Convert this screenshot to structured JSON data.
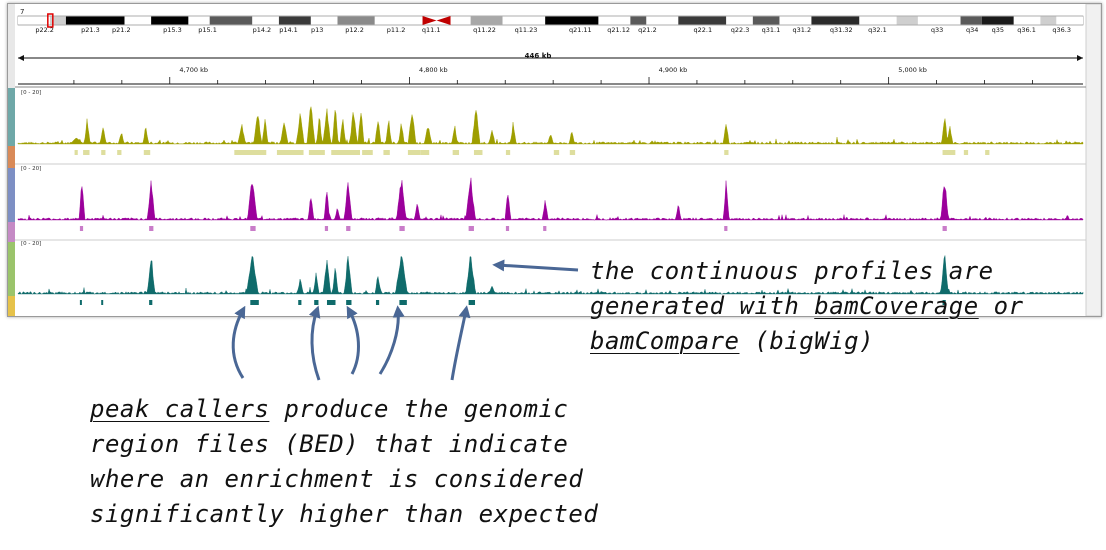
{
  "viewer": {
    "chromosome": "7",
    "bands": [
      {
        "label": "p22.2",
        "pos": 0.025
      },
      {
        "label": "p21.3",
        "pos": 0.068
      },
      {
        "label": "p21.2",
        "pos": 0.097
      },
      {
        "label": "p15.3",
        "pos": 0.145
      },
      {
        "label": "p15.1",
        "pos": 0.178
      },
      {
        "label": "p14.2",
        "pos": 0.229
      },
      {
        "label": "p14.1",
        "pos": 0.254
      },
      {
        "label": "p13",
        "pos": 0.281
      },
      {
        "label": "p12.2",
        "pos": 0.316
      },
      {
        "label": "p11.2",
        "pos": 0.355
      },
      {
        "label": "q11.1",
        "pos": 0.388
      },
      {
        "label": "q11.22",
        "pos": 0.438
      },
      {
        "label": "q11.23",
        "pos": 0.477
      },
      {
        "label": "q21.11",
        "pos": 0.528
      },
      {
        "label": "q21.12",
        "pos": 0.564
      },
      {
        "label": "q21.2",
        "pos": 0.591
      },
      {
        "label": "q22.1",
        "pos": 0.643
      },
      {
        "label": "q22.3",
        "pos": 0.678
      },
      {
        "label": "q31.1",
        "pos": 0.707
      },
      {
        "label": "q31.2",
        "pos": 0.736
      },
      {
        "label": "q31.32",
        "pos": 0.773
      },
      {
        "label": "q32.1",
        "pos": 0.807
      },
      {
        "label": "q33",
        "pos": 0.863
      },
      {
        "label": "q34",
        "pos": 0.896
      },
      {
        "label": "q35",
        "pos": 0.92
      },
      {
        "label": "q36.1",
        "pos": 0.947
      },
      {
        "label": "q36.3",
        "pos": 0.98
      }
    ],
    "span_label": "446 kb",
    "ruler_ticks": [
      {
        "label": "4,700 kb",
        "pos": 0.165
      },
      {
        "label": "4,800 kb",
        "pos": 0.39
      },
      {
        "label": "4,900 kb",
        "pos": 0.615
      },
      {
        "label": "5,000 kb",
        "pos": 0.84
      }
    ],
    "tracks": [
      {
        "range": "[0 - 20]",
        "color": "#9e9e00",
        "bed_color": "#dede9e"
      },
      {
        "range": "[0 - 20]",
        "color": "#9b009b",
        "bed_color": "#c97cc9"
      },
      {
        "range": "[0 - 20]",
        "color": "#0f6b6b",
        "bed_color": "#0f6b6b"
      }
    ]
  },
  "annotations": {
    "right": {
      "line1": "the continuous profiles are",
      "line2_pre": "generated with ",
      "line2_link": "bamCoverage",
      "line2_post": " or",
      "line3_link": "bamCompare",
      "line3_post": " (bigWig)"
    },
    "bottom": {
      "line1_link": "peak callers",
      "line1_post": " produce the genomic",
      "line2": "region files (BED) that indicate",
      "line3": "where an enrichment is considered",
      "line4": "significantly higher than expected"
    }
  },
  "colors": {
    "arrow": "#4a6795",
    "frame": "#9a9a9a"
  }
}
